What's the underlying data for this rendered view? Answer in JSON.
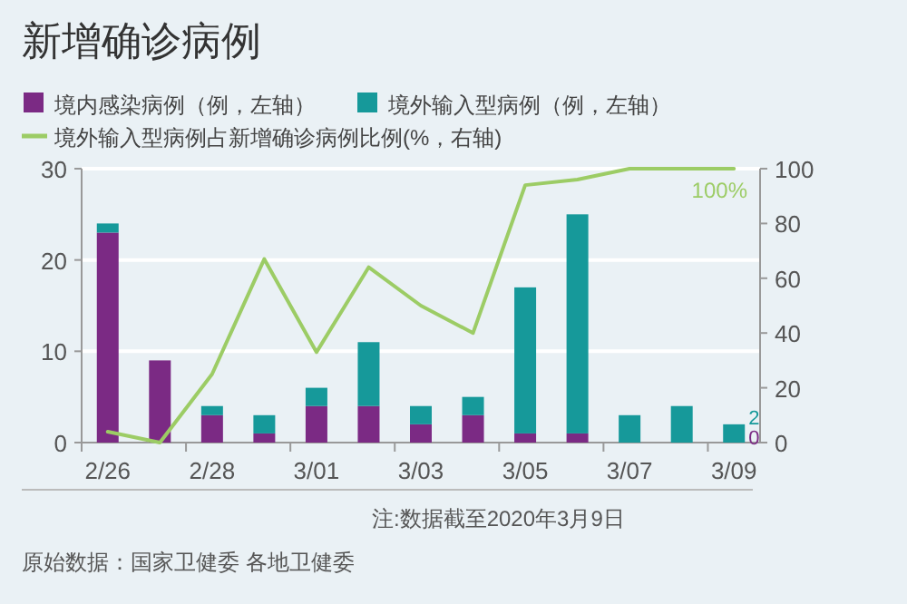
{
  "chart_data": {
    "type": "bar",
    "stacked": true,
    "title": "新增确诊病例",
    "categories": [
      "2/26",
      null,
      "2/28",
      null,
      "3/01",
      null,
      "3/03",
      null,
      "3/05",
      null,
      "3/07",
      null,
      "3/09"
    ],
    "series": [
      {
        "name": "境内感染病例（例，左轴）",
        "color": "#7b2a84",
        "values": [
          23,
          9,
          3,
          1,
          4,
          4,
          2,
          3,
          1,
          1,
          0,
          0,
          0
        ]
      },
      {
        "name": "境外输入型病例（例，左轴）",
        "color": "#16999a",
        "values": [
          1,
          0,
          1,
          2,
          2,
          7,
          2,
          2,
          16,
          24,
          3,
          4,
          2
        ],
        "value_labels": [
          null,
          null,
          null,
          null,
          null,
          null,
          null,
          null,
          null,
          null,
          null,
          null,
          "2"
        ]
      },
      {
        "name": "境外输入型病例占新增确诊病例比例(%，右轴)",
        "type": "line",
        "axis": "y2",
        "color": "#9ccc65",
        "values": [
          4,
          0,
          25,
          67,
          33,
          64,
          50,
          40,
          94,
          96,
          100,
          100,
          100
        ]
      }
    ],
    "ylim": [
      0,
      30
    ],
    "yticks": [
      0,
      10,
      20,
      30
    ],
    "y2lim": [
      0,
      100
    ],
    "y2ticks": [
      0,
      20,
      40,
      60,
      80,
      100
    ],
    "grid": "y",
    "legend": "top left",
    "annotations": [
      "100%",
      "0",
      "注:数据截至2020年3月9日",
      "原始数据：国家卫健委 各地卫健委"
    ]
  }
}
